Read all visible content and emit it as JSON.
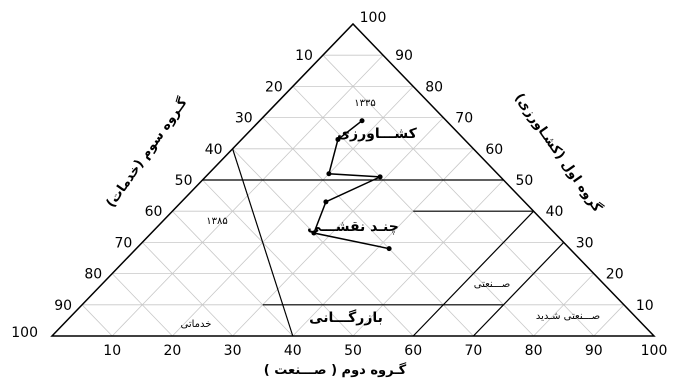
{
  "ticks": {
    "top_vertex": "100",
    "bottom_axis": [
      "10",
      "20",
      "30",
      "40",
      "50",
      "60",
      "70",
      "80",
      "90",
      "100"
    ],
    "bottom_left_corner": "100",
    "left_edge": [
      "10",
      "20",
      "30",
      "40",
      "50",
      "60",
      "70",
      "80",
      "90"
    ],
    "right_edge": [
      "90",
      "80",
      "70",
      "60",
      "50",
      "40",
      "30",
      "20",
      "10"
    ]
  },
  "axis_labels": {
    "bottom": "گـروه دوم ( صـــنعت )",
    "left": "گـروه سوم (خدمات)",
    "right": "گروه اول (کشـاورزی)"
  },
  "regions": {
    "agriculture": "کشـــاورزی",
    "multi": "چنـد نقشـــی",
    "commercial": "بازرگـــانی",
    "services": "خدماتی",
    "industrial": "صـــنعتی",
    "heavy_industrial": "صـــنعتی شـدید"
  },
  "path_labels": {
    "start": "۱۳۳۵",
    "end": "۱۳۸۵"
  },
  "chart_data": {
    "type": "scatter",
    "xlabel": "گـروه دوم ( صـــنعت )",
    "ylabel": "گروه اول (کشـاورزی)",
    "series": [
      {
        "x": [
          17,
          16,
          20,
          29,
          24,
          27,
          42
        ],
        "y": [
          69,
          63,
          52,
          51,
          43,
          33,
          28
        ]
      }
    ]
  }
}
